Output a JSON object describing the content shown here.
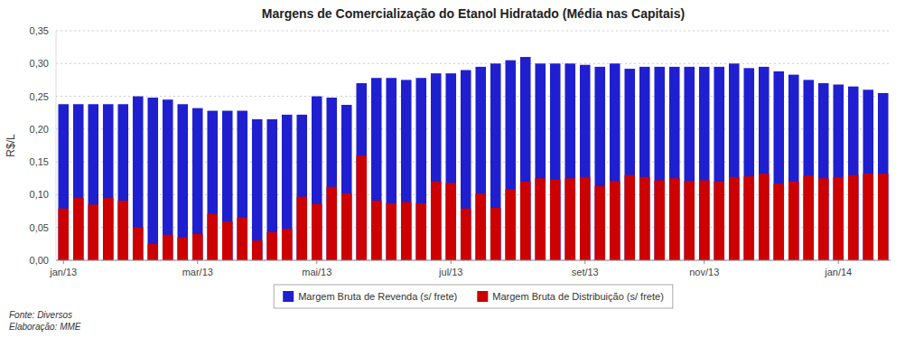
{
  "chart_data": {
    "type": "bar",
    "title": "Margens de Comercialização do Etanol Hidratado (Média nas Capitais)",
    "y_label": "R$/L",
    "annotations": [
      "Fonte: Diversos",
      "Elaboração: MME"
    ],
    "categories": [
      "jan/13",
      null,
      null,
      null,
      null,
      null,
      null,
      null,
      null,
      "mar/13",
      null,
      null,
      null,
      null,
      null,
      null,
      null,
      "mai/13",
      null,
      null,
      null,
      null,
      null,
      null,
      null,
      null,
      "jul/13",
      null,
      null,
      null,
      null,
      null,
      null,
      null,
      null,
      "set/13",
      null,
      null,
      null,
      null,
      null,
      null,
      null,
      "nov/13",
      null,
      null,
      null,
      null,
      null,
      null,
      null,
      null,
      "jan/14",
      null,
      null,
      null
    ],
    "series": [
      {
        "name": "Margem Bruta de Revenda (s/ frete)",
        "color": "#1F1FCF",
        "values": [
          0.238,
          0.238,
          0.238,
          0.238,
          0.238,
          0.25,
          0.248,
          0.245,
          0.238,
          0.232,
          0.228,
          0.228,
          0.228,
          0.215,
          0.215,
          0.222,
          0.222,
          0.25,
          0.248,
          0.237,
          0.27,
          0.278,
          0.278,
          0.275,
          0.278,
          0.285,
          0.285,
          0.29,
          0.295,
          0.3,
          0.305,
          0.31,
          0.3,
          0.3,
          0.3,
          0.298,
          0.295,
          0.3,
          0.292,
          0.295,
          0.295,
          0.295,
          0.295,
          0.295,
          0.295,
          0.3,
          0.293,
          0.295,
          0.288,
          0.283,
          0.275,
          0.27,
          0.268,
          0.265,
          0.26,
          0.255
        ]
      },
      {
        "name": "Margem Bruta de Distribuição (s/ frete)",
        "color": "#CC0000",
        "values": [
          0.079,
          0.095,
          0.085,
          0.095,
          0.091,
          0.05,
          0.025,
          0.039,
          0.035,
          0.04,
          0.071,
          0.059,
          0.065,
          0.03,
          0.043,
          0.048,
          0.097,
          0.086,
          0.112,
          0.102,
          0.16,
          0.091,
          0.087,
          0.089,
          0.087,
          0.12,
          0.118,
          0.079,
          0.102,
          0.08,
          0.108,
          0.12,
          0.125,
          0.123,
          0.125,
          0.127,
          0.113,
          0.121,
          0.13,
          0.127,
          0.122,
          0.125,
          0.121,
          0.122,
          0.12,
          0.127,
          0.128,
          0.132,
          0.117,
          0.12,
          0.129,
          0.125,
          0.127,
          0.13,
          0.132,
          0.132
        ]
      }
    ],
    "stacked": false,
    "ylim": [
      0.0,
      0.35
    ],
    "yticks": [
      {
        "value": 0.0,
        "label": "0,00"
      },
      {
        "value": 0.05,
        "label": "0,05"
      },
      {
        "value": 0.1,
        "label": "0,10"
      },
      {
        "value": 0.15,
        "label": "0,15"
      },
      {
        "value": 0.2,
        "label": "0,20"
      },
      {
        "value": 0.25,
        "label": "0,25"
      },
      {
        "value": 0.3,
        "label": "0,30"
      },
      {
        "value": 0.35,
        "label": "0,35"
      }
    ],
    "grid": true,
    "legend": "bottom"
  }
}
